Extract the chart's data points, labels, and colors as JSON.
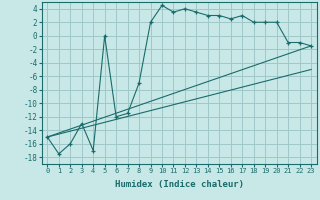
{
  "xlabel": "Humidex (Indice chaleur)",
  "background_color": "#c8e8e8",
  "grid_color": "#a0c8c8",
  "line_color": "#1a6b6b",
  "xlim": [
    -0.5,
    23.5
  ],
  "ylim": [
    -19,
    5
  ],
  "xticks": [
    0,
    1,
    2,
    3,
    4,
    5,
    6,
    7,
    8,
    9,
    10,
    11,
    12,
    13,
    14,
    15,
    16,
    17,
    18,
    19,
    20,
    21,
    22,
    23
  ],
  "yticks": [
    -18,
    -16,
    -14,
    -12,
    -10,
    -8,
    -6,
    -4,
    -2,
    0,
    2,
    4
  ],
  "line1_x": [
    0,
    1,
    2,
    3,
    4,
    5,
    6,
    7,
    8,
    9,
    10,
    11,
    12,
    13,
    14,
    15,
    16,
    17,
    18,
    19,
    20,
    21,
    22,
    23
  ],
  "line1_y": [
    -15,
    -17.5,
    -16,
    -13,
    -17,
    0,
    -12,
    -11.5,
    -7,
    2,
    4.5,
    3.5,
    4,
    3.5,
    3,
    3,
    2.5,
    3,
    2,
    2,
    2,
    -1,
    -1,
    -1.5
  ],
  "line2_x": [
    0,
    23
  ],
  "line2_y": [
    -15,
    -1.5
  ],
  "line3_x": [
    0,
    23
  ],
  "line3_y": [
    -15,
    -5
  ]
}
